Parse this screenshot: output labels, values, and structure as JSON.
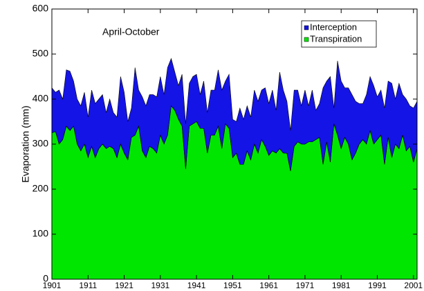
{
  "chart_data": {
    "type": "stacked-area",
    "annotation": "April-October",
    "ylabel": "Evaporation (mm)",
    "x": [
      1901,
      1902,
      1903,
      1904,
      1905,
      1906,
      1907,
      1908,
      1909,
      1910,
      1911,
      1912,
      1913,
      1914,
      1915,
      1916,
      1917,
      1918,
      1919,
      1920,
      1921,
      1922,
      1923,
      1924,
      1925,
      1926,
      1927,
      1928,
      1929,
      1930,
      1931,
      1932,
      1933,
      1934,
      1935,
      1936,
      1937,
      1938,
      1939,
      1940,
      1941,
      1942,
      1943,
      1944,
      1945,
      1946,
      1947,
      1948,
      1949,
      1950,
      1951,
      1952,
      1953,
      1954,
      1955,
      1956,
      1957,
      1958,
      1959,
      1960,
      1961,
      1962,
      1963,
      1964,
      1965,
      1966,
      1967,
      1968,
      1969,
      1970,
      1971,
      1972,
      1973,
      1974,
      1975,
      1976,
      1977,
      1978,
      1979,
      1980,
      1981,
      1982,
      1983,
      1984,
      1985,
      1986,
      1987,
      1988,
      1989,
      1990,
      1991,
      1992,
      1993,
      1994,
      1995,
      1996,
      1997,
      1998,
      1999,
      2000,
      2001,
      2002
    ],
    "series": [
      {
        "name": "Transpiration",
        "color": "#00e600",
        "values": [
          325,
          328,
          300,
          310,
          340,
          330,
          340,
          300,
          285,
          300,
          270,
          295,
          270,
          290,
          300,
          290,
          295,
          290,
          270,
          300,
          280,
          265,
          315,
          320,
          340,
          285,
          270,
          295,
          290,
          280,
          320,
          300,
          320,
          385,
          375,
          355,
          340,
          245,
          340,
          345,
          350,
          335,
          335,
          280,
          320,
          320,
          340,
          290,
          345,
          335,
          270,
          280,
          255,
          255,
          285,
          265,
          300,
          280,
          310,
          295,
          275,
          285,
          280,
          290,
          280,
          280,
          240,
          295,
          305,
          300,
          300,
          305,
          305,
          310,
          315,
          255,
          305,
          260,
          345,
          320,
          290,
          315,
          300,
          265,
          280,
          300,
          310,
          300,
          330,
          300,
          310,
          320,
          255,
          315,
          270,
          300,
          290,
          320,
          285,
          295,
          260,
          290
        ]
      },
      {
        "name": "Interception",
        "color": "#1414e6",
        "values": [
          100,
          87,
          120,
          90,
          125,
          132,
          100,
          100,
          100,
          115,
          90,
          125,
          120,
          110,
          110,
          80,
          105,
          80,
          90,
          150,
          135,
          85,
          65,
          150,
          80,
          120,
          115,
          115,
          120,
          125,
          130,
          110,
          150,
          105,
          85,
          75,
          115,
          100,
          95,
          105,
          105,
          75,
          105,
          90,
          100,
          100,
          125,
          130,
          95,
          120,
          85,
          70,
          125,
          100,
          100,
          95,
          120,
          115,
          110,
          130,
          115,
          135,
          95,
          170,
          140,
          115,
          90,
          125,
          115,
          85,
          120,
          80,
          115,
          65,
          75,
          170,
          135,
          190,
          35,
          165,
          150,
          110,
          125,
          145,
          115,
          90,
          80,
          110,
          120,
          130,
          95,
          100,
          125,
          125,
          165,
          100,
          145,
          90,
          115,
          90,
          120,
          105
        ]
      }
    ],
    "legend": "upper right",
    "xlim": [
      1901,
      2002
    ],
    "xticks": [
      1901,
      1911,
      1921,
      1931,
      1941,
      1951,
      1961,
      1971,
      1981,
      1991,
      2001
    ],
    "ylim": [
      0,
      600
    ],
    "yticks": [
      0,
      100,
      200,
      300,
      400,
      500,
      600
    ]
  }
}
